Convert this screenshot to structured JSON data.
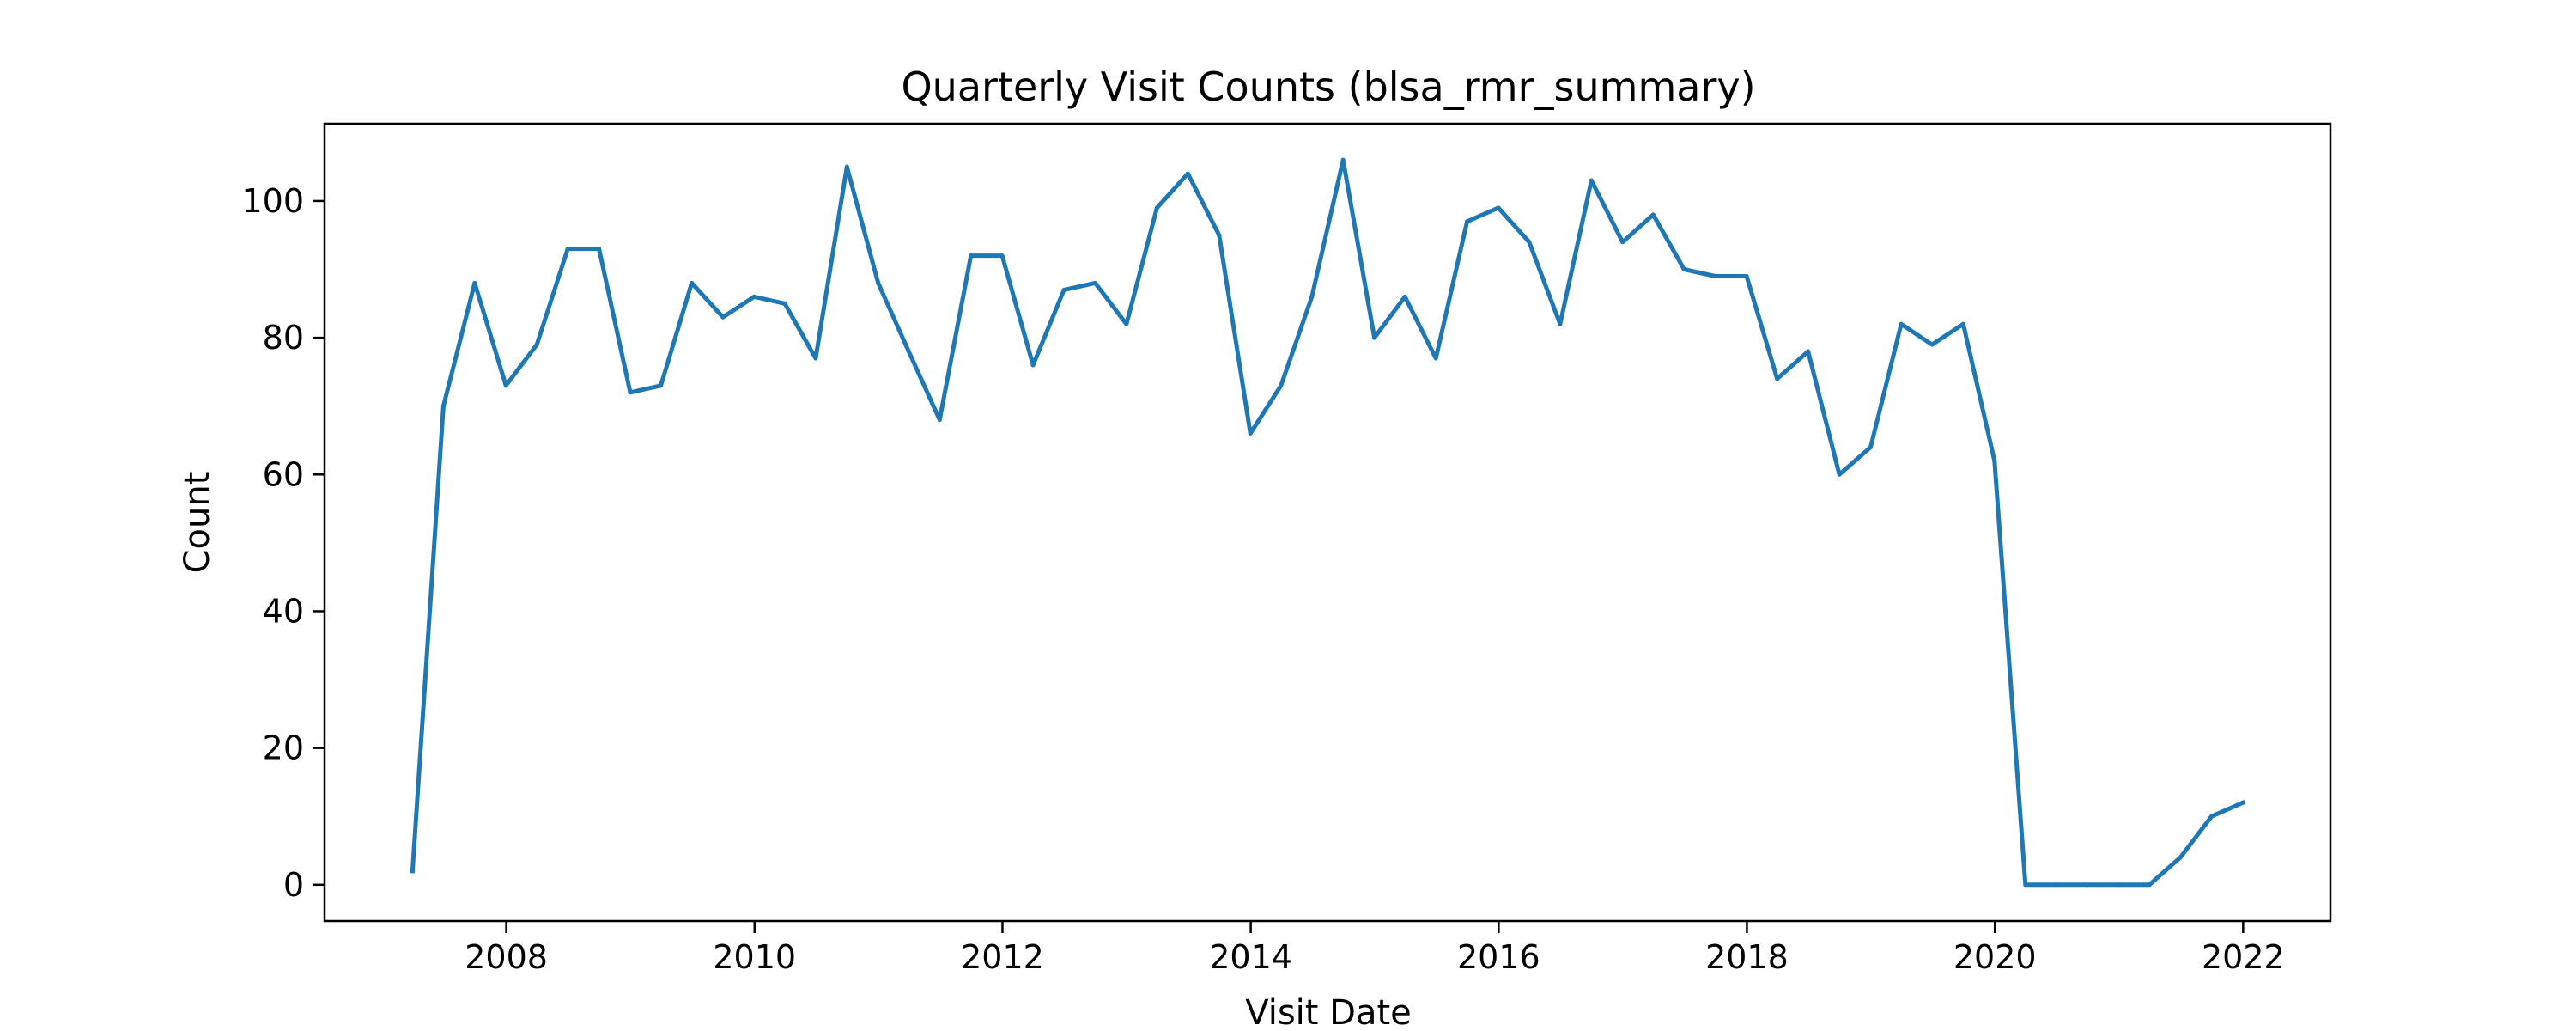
{
  "chart_data": {
    "type": "line",
    "title": "Quarterly Visit Counts (blsa_rmr_summary)",
    "xlabel": "Visit Date",
    "ylabel": "Count",
    "xlim": [
      "2006-07-15",
      "2022-09-15"
    ],
    "ylim": [
      -5.3,
      111.3
    ],
    "x_ticks": [
      "2008",
      "2010",
      "2012",
      "2014",
      "2016",
      "2018",
      "2020",
      "2022"
    ],
    "y_ticks": [
      0,
      20,
      40,
      60,
      80,
      100
    ],
    "grid": false,
    "line_color": "#1f77b4",
    "series": [
      {
        "x": [
          "2007-03-31",
          "2007-06-30",
          "2007-09-30",
          "2007-12-31",
          "2008-03-31",
          "2008-06-30",
          "2008-09-30",
          "2008-12-31",
          "2009-03-31",
          "2009-06-30",
          "2009-09-30",
          "2009-12-31",
          "2010-03-31",
          "2010-06-30",
          "2010-09-30",
          "2010-12-31",
          "2011-03-31",
          "2011-06-30",
          "2011-09-30",
          "2011-12-31",
          "2012-03-31",
          "2012-06-30",
          "2012-09-30",
          "2012-12-31",
          "2013-03-31",
          "2013-06-30",
          "2013-09-30",
          "2013-12-31",
          "2014-03-31",
          "2014-06-30",
          "2014-09-30",
          "2014-12-31",
          "2015-03-31",
          "2015-06-30",
          "2015-09-30",
          "2015-12-31",
          "2016-03-31",
          "2016-06-30",
          "2016-09-30",
          "2016-12-31",
          "2017-03-31",
          "2017-06-30",
          "2017-09-30",
          "2017-12-31",
          "2018-03-31",
          "2018-06-30",
          "2018-09-30",
          "2018-12-31",
          "2019-03-31",
          "2019-06-30",
          "2019-09-30",
          "2019-12-31",
          "2020-03-31",
          "2020-06-30",
          "2020-09-30",
          "2020-12-31",
          "2021-03-31",
          "2021-06-30",
          "2021-09-30",
          "2021-12-31"
        ],
        "y": [
          2,
          70,
          88,
          73,
          79,
          93,
          93,
          72,
          73,
          88,
          83,
          86,
          85,
          77,
          105,
          88,
          78,
          68,
          92,
          92,
          76,
          87,
          88,
          82,
          99,
          104,
          95,
          66,
          73,
          86,
          106,
          80,
          86,
          77,
          97,
          99,
          94,
          82,
          103,
          94,
          98,
          90,
          89,
          89,
          74,
          78,
          60,
          64,
          82,
          79,
          82,
          62,
          0,
          0,
          0,
          0,
          0,
          4,
          10,
          12
        ]
      }
    ]
  }
}
